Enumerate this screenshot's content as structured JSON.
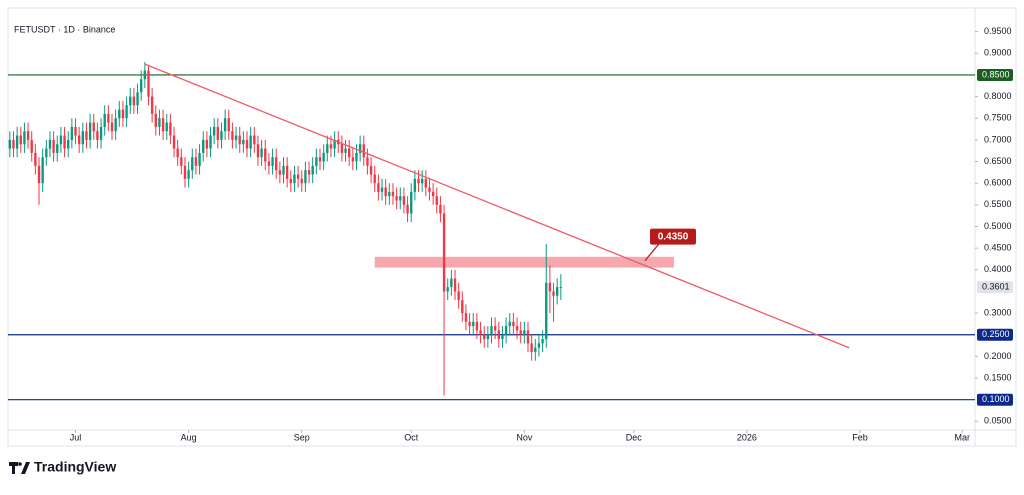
{
  "chart_data": {
    "type": "candlestick",
    "title": "FETUSDT · 1D · Binance",
    "brand": "TradingView",
    "up_color": "#089981",
    "down_color": "#f23645",
    "open": [
      0.68,
      0.7,
      0.68,
      0.71,
      0.69,
      0.72,
      0.7,
      0.67,
      0.64,
      0.6,
      0.66,
      0.68,
      0.7,
      0.67,
      0.69,
      0.71,
      0.68,
      0.7,
      0.73,
      0.71,
      0.69,
      0.72,
      0.7,
      0.74,
      0.72,
      0.7,
      0.73,
      0.76,
      0.74,
      0.72,
      0.75,
      0.77,
      0.75,
      0.78,
      0.8,
      0.78,
      0.81,
      0.84,
      0.86,
      0.8,
      0.76,
      0.73,
      0.75,
      0.72,
      0.74,
      0.71,
      0.68,
      0.66,
      0.64,
      0.61,
      0.63,
      0.66,
      0.64,
      0.67,
      0.7,
      0.68,
      0.71,
      0.73,
      0.7,
      0.72,
      0.75,
      0.72,
      0.7,
      0.71,
      0.69,
      0.7,
      0.68,
      0.71,
      0.69,
      0.66,
      0.68,
      0.65,
      0.64,
      0.66,
      0.63,
      0.62,
      0.64,
      0.61,
      0.6,
      0.62,
      0.61,
      0.6,
      0.63,
      0.62,
      0.64,
      0.66,
      0.65,
      0.67,
      0.69,
      0.68,
      0.7,
      0.69,
      0.67,
      0.68,
      0.66,
      0.65,
      0.67,
      0.69,
      0.66,
      0.64,
      0.62,
      0.6,
      0.58,
      0.59,
      0.57,
      0.58,
      0.57,
      0.56,
      0.57,
      0.55,
      0.53,
      0.58,
      0.61,
      0.6,
      0.61,
      0.59,
      0.58,
      0.57,
      0.55,
      0.53,
      0.35,
      0.36,
      0.38,
      0.35,
      0.33,
      0.3,
      0.28,
      0.27,
      0.28,
      0.26,
      0.25,
      0.24,
      0.25,
      0.27,
      0.26,
      0.24,
      0.25,
      0.27,
      0.28,
      0.27,
      0.26,
      0.25,
      0.26,
      0.23,
      0.21,
      0.22,
      0.23,
      0.24,
      0.37,
      0.35,
      0.34,
      0.36
    ],
    "high": [
      0.72,
      0.72,
      0.73,
      0.73,
      0.74,
      0.74,
      0.72,
      0.69,
      0.66,
      0.68,
      0.7,
      0.72,
      0.72,
      0.71,
      0.73,
      0.73,
      0.72,
      0.75,
      0.75,
      0.73,
      0.74,
      0.74,
      0.76,
      0.76,
      0.74,
      0.75,
      0.78,
      0.78,
      0.76,
      0.77,
      0.79,
      0.79,
      0.8,
      0.82,
      0.82,
      0.83,
      0.86,
      0.88,
      0.87,
      0.82,
      0.78,
      0.77,
      0.77,
      0.76,
      0.76,
      0.73,
      0.7,
      0.68,
      0.66,
      0.65,
      0.68,
      0.68,
      0.69,
      0.72,
      0.72,
      0.73,
      0.75,
      0.75,
      0.74,
      0.77,
      0.77,
      0.74,
      0.73,
      0.73,
      0.72,
      0.72,
      0.73,
      0.73,
      0.71,
      0.7,
      0.7,
      0.67,
      0.68,
      0.68,
      0.65,
      0.66,
      0.66,
      0.63,
      0.64,
      0.64,
      0.63,
      0.65,
      0.65,
      0.66,
      0.68,
      0.68,
      0.69,
      0.71,
      0.71,
      0.72,
      0.72,
      0.71,
      0.7,
      0.7,
      0.68,
      0.69,
      0.71,
      0.71,
      0.68,
      0.66,
      0.64,
      0.62,
      0.61,
      0.61,
      0.6,
      0.6,
      0.59,
      0.59,
      0.59,
      0.57,
      0.6,
      0.63,
      0.63,
      0.63,
      0.63,
      0.61,
      0.6,
      0.59,
      0.57,
      0.55,
      0.38,
      0.4,
      0.4,
      0.37,
      0.35,
      0.32,
      0.3,
      0.3,
      0.3,
      0.28,
      0.27,
      0.27,
      0.29,
      0.29,
      0.28,
      0.27,
      0.29,
      0.3,
      0.3,
      0.29,
      0.28,
      0.28,
      0.28,
      0.25,
      0.24,
      0.25,
      0.26,
      0.46,
      0.41,
      0.37,
      0.38,
      0.39
    ],
    "low": [
      0.66,
      0.66,
      0.66,
      0.67,
      0.67,
      0.68,
      0.65,
      0.62,
      0.55,
      0.58,
      0.64,
      0.66,
      0.65,
      0.65,
      0.67,
      0.66,
      0.66,
      0.68,
      0.69,
      0.67,
      0.67,
      0.68,
      0.68,
      0.7,
      0.68,
      0.68,
      0.71,
      0.72,
      0.7,
      0.7,
      0.73,
      0.73,
      0.73,
      0.76,
      0.76,
      0.76,
      0.79,
      0.82,
      0.78,
      0.74,
      0.71,
      0.71,
      0.7,
      0.7,
      0.69,
      0.66,
      0.64,
      0.62,
      0.59,
      0.59,
      0.61,
      0.62,
      0.62,
      0.65,
      0.66,
      0.66,
      0.69,
      0.68,
      0.68,
      0.7,
      0.7,
      0.68,
      0.68,
      0.67,
      0.67,
      0.66,
      0.66,
      0.67,
      0.64,
      0.64,
      0.63,
      0.62,
      0.62,
      0.61,
      0.6,
      0.6,
      0.59,
      0.58,
      0.58,
      0.59,
      0.58,
      0.58,
      0.6,
      0.6,
      0.62,
      0.63,
      0.63,
      0.65,
      0.66,
      0.66,
      0.67,
      0.65,
      0.65,
      0.64,
      0.63,
      0.63,
      0.65,
      0.64,
      0.62,
      0.6,
      0.58,
      0.56,
      0.56,
      0.55,
      0.55,
      0.55,
      0.54,
      0.54,
      0.53,
      0.51,
      0.51,
      0.56,
      0.58,
      0.58,
      0.57,
      0.56,
      0.55,
      0.53,
      0.51,
      0.11,
      0.33,
      0.34,
      0.33,
      0.31,
      0.28,
      0.26,
      0.25,
      0.25,
      0.24,
      0.23,
      0.22,
      0.22,
      0.23,
      0.24,
      0.22,
      0.22,
      0.23,
      0.25,
      0.25,
      0.24,
      0.23,
      0.23,
      0.21,
      0.19,
      0.19,
      0.2,
      0.21,
      0.22,
      0.3,
      0.28,
      0.32,
      0.33
    ],
    "close": [
      0.7,
      0.68,
      0.71,
      0.69,
      0.72,
      0.7,
      0.67,
      0.64,
      0.6,
      0.66,
      0.68,
      0.7,
      0.67,
      0.69,
      0.71,
      0.68,
      0.7,
      0.73,
      0.71,
      0.69,
      0.72,
      0.7,
      0.74,
      0.72,
      0.7,
      0.73,
      0.76,
      0.74,
      0.72,
      0.75,
      0.77,
      0.75,
      0.78,
      0.8,
      0.78,
      0.81,
      0.84,
      0.86,
      0.8,
      0.76,
      0.73,
      0.75,
      0.72,
      0.74,
      0.71,
      0.68,
      0.66,
      0.64,
      0.61,
      0.63,
      0.66,
      0.64,
      0.67,
      0.7,
      0.68,
      0.71,
      0.73,
      0.7,
      0.72,
      0.75,
      0.72,
      0.7,
      0.71,
      0.69,
      0.7,
      0.68,
      0.71,
      0.69,
      0.66,
      0.68,
      0.65,
      0.64,
      0.66,
      0.63,
      0.62,
      0.64,
      0.61,
      0.6,
      0.62,
      0.61,
      0.6,
      0.63,
      0.62,
      0.64,
      0.66,
      0.65,
      0.67,
      0.69,
      0.68,
      0.7,
      0.69,
      0.67,
      0.68,
      0.66,
      0.65,
      0.67,
      0.69,
      0.66,
      0.64,
      0.62,
      0.6,
      0.58,
      0.59,
      0.57,
      0.58,
      0.57,
      0.56,
      0.57,
      0.55,
      0.53,
      0.58,
      0.61,
      0.6,
      0.61,
      0.59,
      0.58,
      0.57,
      0.55,
      0.53,
      0.35,
      0.36,
      0.38,
      0.35,
      0.33,
      0.3,
      0.28,
      0.27,
      0.28,
      0.26,
      0.25,
      0.24,
      0.25,
      0.27,
      0.26,
      0.24,
      0.25,
      0.27,
      0.28,
      0.27,
      0.26,
      0.25,
      0.26,
      0.23,
      0.21,
      0.22,
      0.23,
      0.24,
      0.37,
      0.35,
      0.34,
      0.36,
      0.3601
    ],
    "last_price_label": "0.3601",
    "xlim": [
      -0.5,
      264.5
    ],
    "xticks": [
      {
        "value": 18,
        "label": "Jul"
      },
      {
        "value": 49,
        "label": "Aug"
      },
      {
        "value": 80,
        "label": "Sep"
      },
      {
        "value": 110,
        "label": "Oct"
      },
      {
        "value": 141,
        "label": "Nov"
      },
      {
        "value": 171,
        "label": "Dec"
      },
      {
        "value": 202,
        "label": "2026"
      },
      {
        "value": 233,
        "label": "Feb"
      },
      {
        "value": 261,
        "label": "Mar"
      }
    ],
    "ylim": [
      0.03,
      1.0
    ],
    "yticks": [
      {
        "value": 0.95,
        "label": "0.9500"
      },
      {
        "value": 0.9,
        "label": "0.9000"
      },
      {
        "value": 0.8,
        "label": "0.8000"
      },
      {
        "value": 0.75,
        "label": "0.7500"
      },
      {
        "value": 0.7,
        "label": "0.7000"
      },
      {
        "value": 0.65,
        "label": "0.6500"
      },
      {
        "value": 0.6,
        "label": "0.6000"
      },
      {
        "value": 0.55,
        "label": "0.5500"
      },
      {
        "value": 0.5,
        "label": "0.5000"
      },
      {
        "value": 0.45,
        "label": "0.4500"
      },
      {
        "value": 0.4,
        "label": "0.4000"
      },
      {
        "value": 0.3,
        "label": "0.3000"
      },
      {
        "value": 0.2,
        "label": "0.2000"
      },
      {
        "value": 0.15,
        "label": "0.1500"
      },
      {
        "value": 0.05,
        "label": "0.0500"
      }
    ],
    "levels": [
      {
        "value": 0.85,
        "label": "0.8500",
        "color": "#1b5e20"
      },
      {
        "value": 0.25,
        "label": "0.2500",
        "color": "#0d2a8a"
      },
      {
        "value": 0.1,
        "label": "0.1000",
        "color": "#0d2a8a"
      }
    ],
    "zone": {
      "x": [
        100,
        182
      ],
      "y": [
        0.405,
        0.43
      ],
      "color": "#f7a8ae"
    },
    "trendline": {
      "x": [
        37,
        230
      ],
      "y": [
        0.875,
        0.22
      ],
      "color": "#f05a68"
    },
    "callout": {
      "value": 0.435,
      "label": "0.4350",
      "color": "#b71c1c"
    }
  }
}
